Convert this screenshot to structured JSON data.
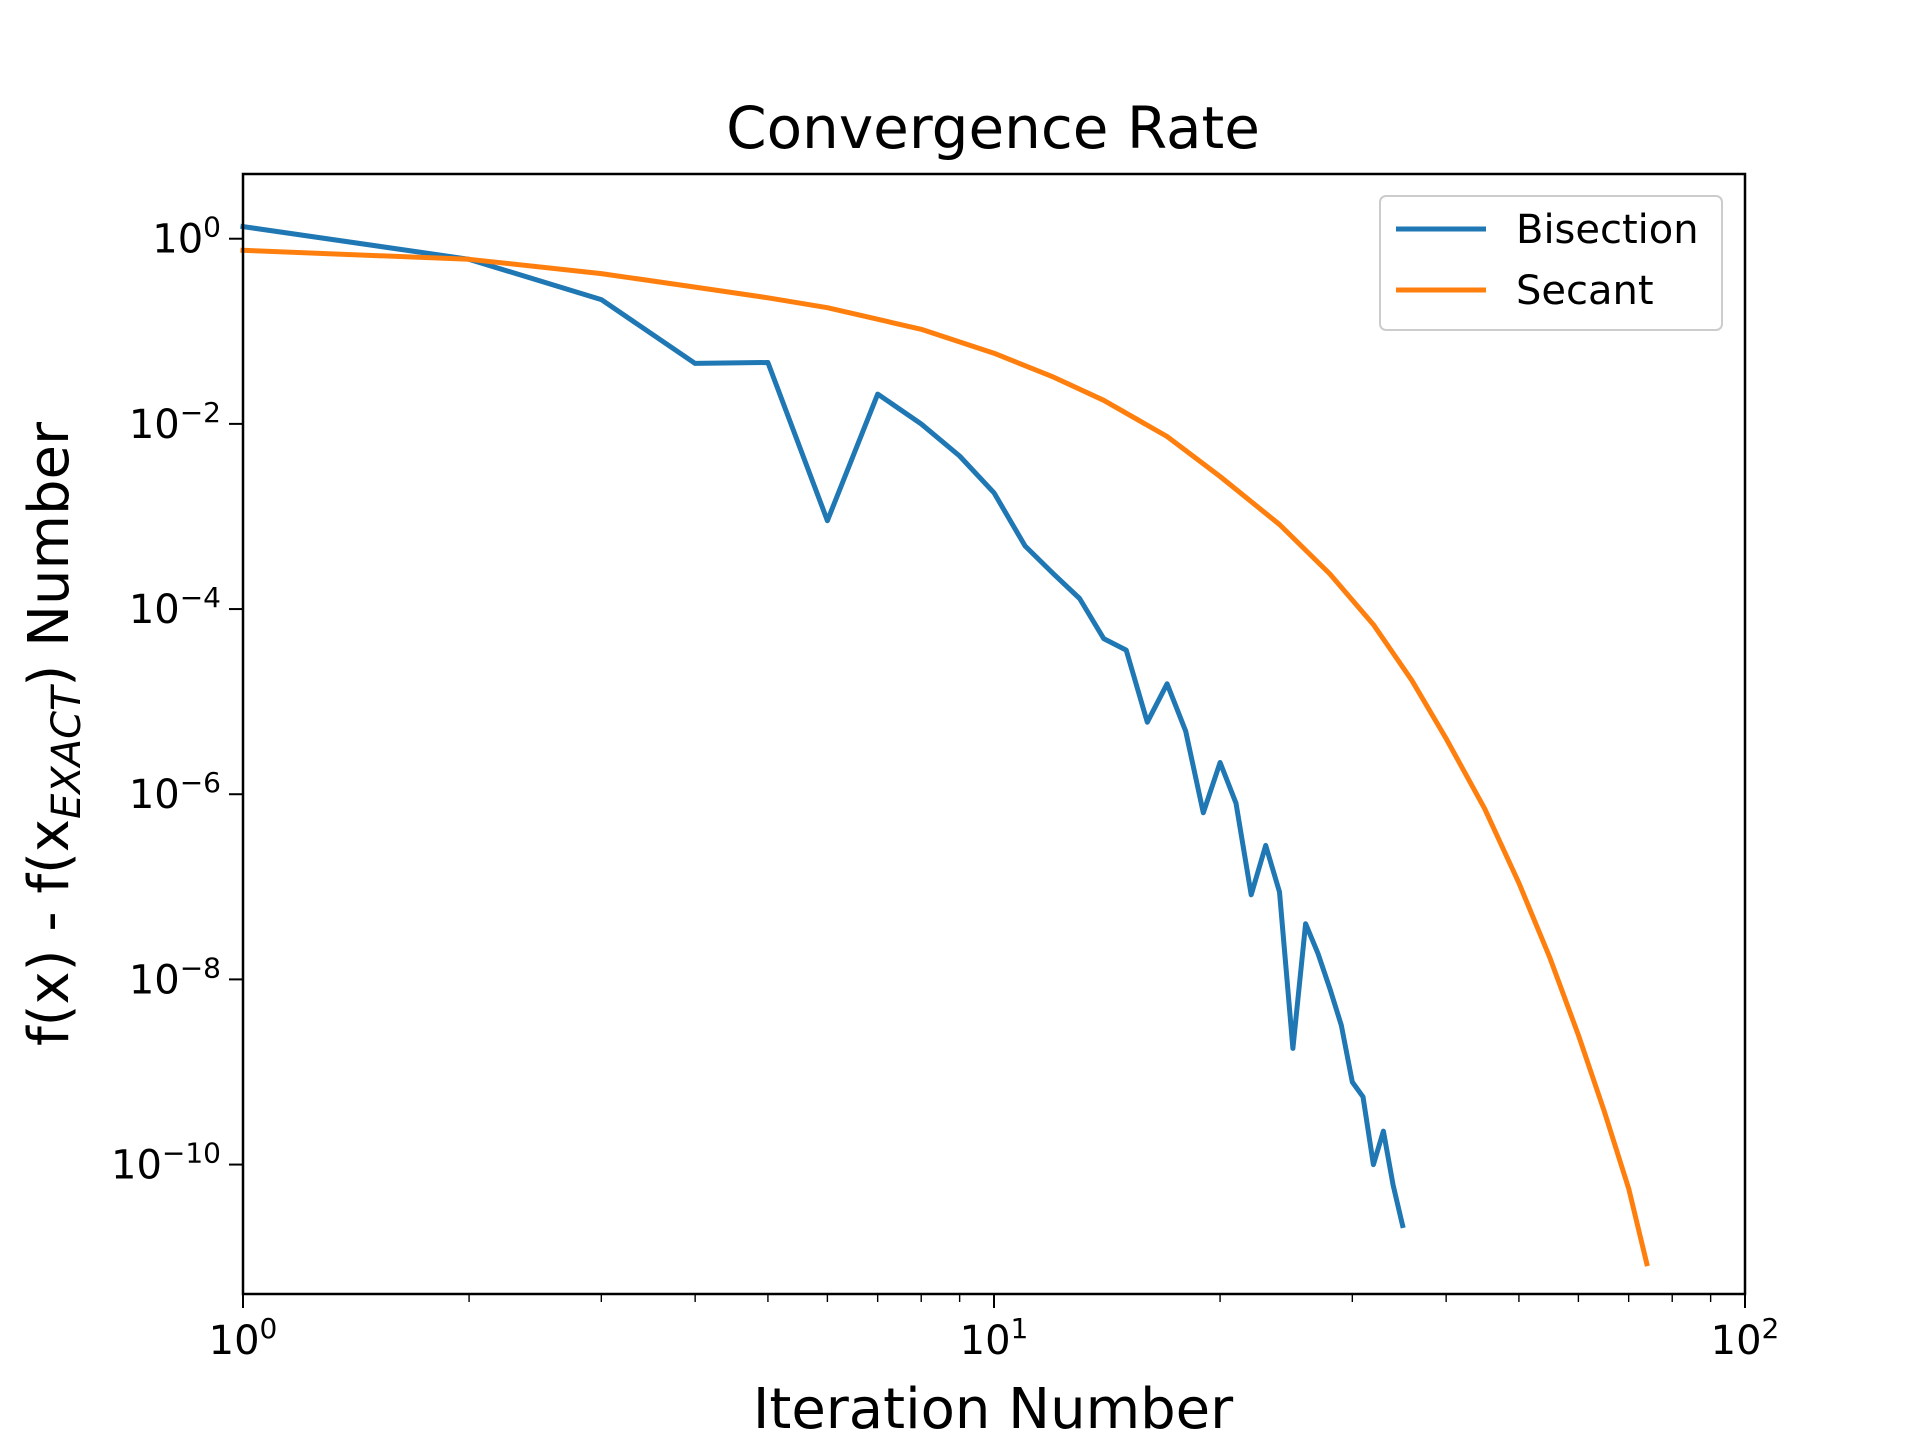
{
  "chart_data": {
    "type": "line",
    "title": "Convergence Rate",
    "xlabel": "Iteration Number",
    "ylabel": "f(x) - f(x_EXACT) Number",
    "ylabel_parts": {
      "main": "f(x) - f(x",
      "sub": "EXACT",
      "tail": ") Number"
    },
    "x_scale": "log",
    "y_scale": "log",
    "xlim": [
      1,
      100
    ],
    "ylim": [
      4e-12,
      5
    ],
    "x_ticks": [
      {
        "base": "10",
        "exp": "0",
        "value": 1
      },
      {
        "base": "10",
        "exp": "1",
        "value": 10
      },
      {
        "base": "10",
        "exp": "2",
        "value": 100
      }
    ],
    "y_ticks": [
      {
        "base": "10",
        "exp": "0",
        "value": 1
      },
      {
        "base": "10",
        "exp": "−2",
        "value": 0.01
      },
      {
        "base": "10",
        "exp": "−4",
        "value": 0.0001
      },
      {
        "base": "10",
        "exp": "−6",
        "value": 1e-06
      },
      {
        "base": "10",
        "exp": "−8",
        "value": 1e-08
      },
      {
        "base": "10",
        "exp": "−10",
        "value": 1e-10
      }
    ],
    "grid": false,
    "legend_position": "top-right",
    "series": [
      {
        "name": "Bisection",
        "color": "#1f77b4",
        "x": [
          1,
          2,
          3,
          4,
          5,
          6,
          7,
          8,
          9,
          10,
          11,
          12,
          13,
          14,
          15,
          16,
          17,
          18,
          19,
          20,
          21,
          22,
          23,
          24,
          25,
          26,
          27,
          28,
          29,
          30,
          31,
          32,
          33,
          34,
          35
        ],
        "y": [
          1.35,
          0.6,
          0.22,
          0.045,
          0.046,
          0.0009,
          0.021,
          0.01,
          0.0045,
          0.0018,
          0.00048,
          0.00024,
          0.00013,
          4.8e-05,
          3.6e-05,
          6e-06,
          1.56e-05,
          4.8e-06,
          6.3e-07,
          2.2e-06,
          8e-07,
          8.2e-08,
          2.8e-07,
          8.8e-08,
          1.8e-09,
          4e-08,
          1.9e-08,
          8e-09,
          3.2e-09,
          7.8e-10,
          5.4e-10,
          1e-10,
          2.3e-10,
          6e-11,
          2.2e-11
        ]
      },
      {
        "name": "Secant",
        "color": "#ff7f0e",
        "x": [
          1,
          2,
          3,
          4,
          5,
          6,
          8,
          10,
          12,
          14,
          17,
          20,
          24,
          28,
          32,
          36,
          40,
          45,
          50,
          55,
          60,
          65,
          70,
          74
        ],
        "y": [
          0.75,
          0.6,
          0.42,
          0.3,
          0.23,
          0.18,
          0.105,
          0.058,
          0.032,
          0.018,
          0.0073,
          0.0027,
          0.00082,
          0.00024,
          6.8e-05,
          1.7e-05,
          4e-06,
          7e-07,
          1.1e-07,
          1.7e-08,
          2.5e-09,
          3.7e-10,
          5.5e-11,
          8.5e-12
        ]
      }
    ]
  }
}
